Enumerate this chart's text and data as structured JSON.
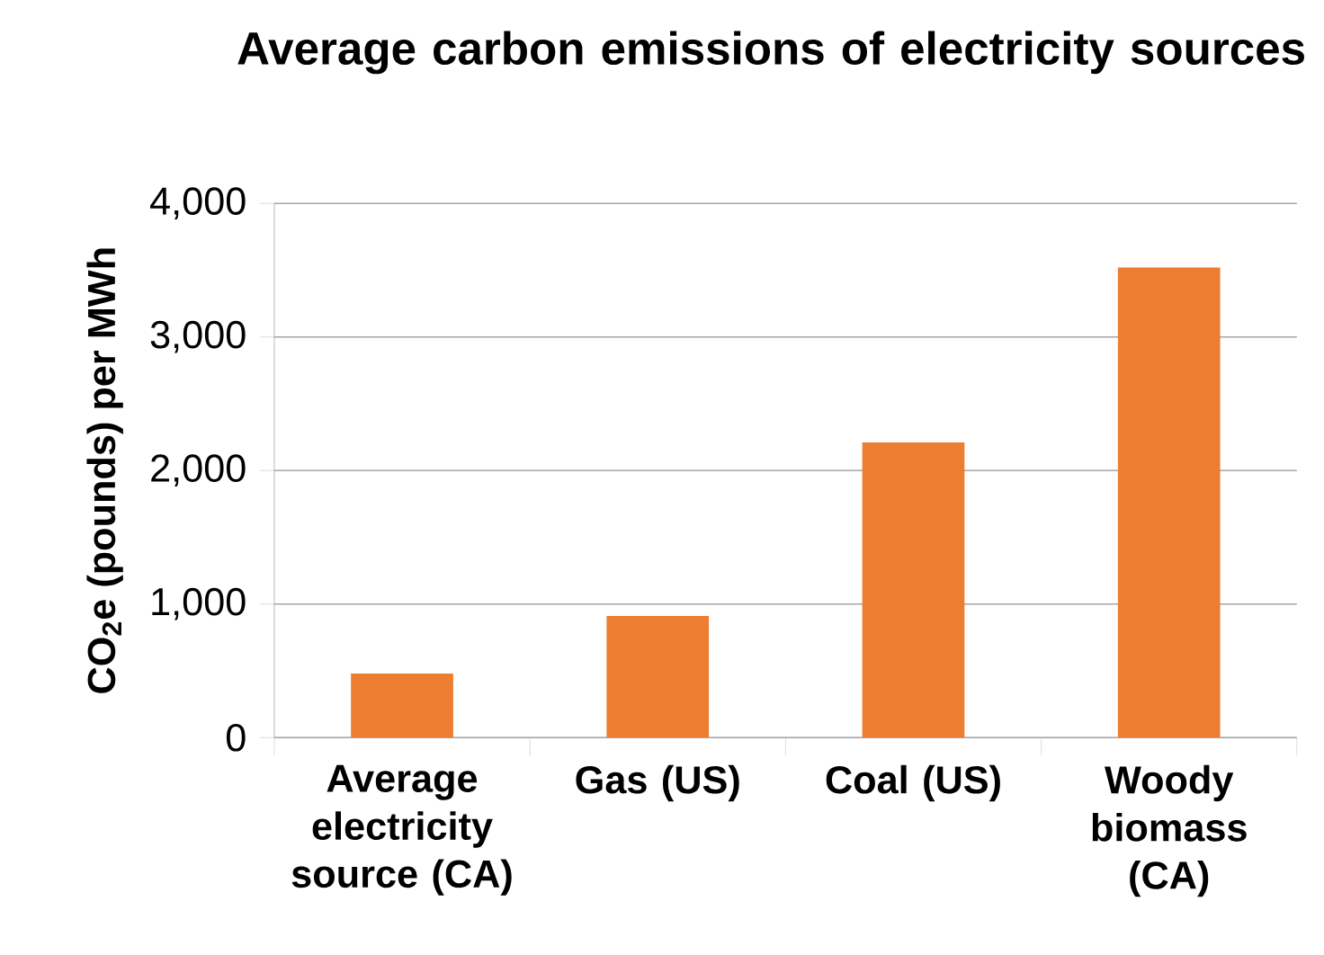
{
  "chart_data": {
    "type": "bar",
    "title": "Average carbon emissions of electricity sources",
    "ylabel": "CO$_{2}$e (pounds) per MWh",
    "categories": [
      "Average electricity source (CA)",
      "Gas (US)",
      "Coal (US)",
      "Woody biomass (CA)"
    ],
    "values": [
      480,
      910,
      2210,
      3520
    ],
    "color": "#ed7d31",
    "ylim": [
      0,
      4000
    ],
    "yticks": [
      {
        "value": 0,
        "label": "0"
      },
      {
        "value": 1000,
        "label": "1,000"
      },
      {
        "value": 2000,
        "label": "2,000"
      },
      {
        "value": 3000,
        "label": "3,000"
      },
      {
        "value": 4000,
        "label": "4,000"
      }
    ],
    "grid": "y"
  }
}
